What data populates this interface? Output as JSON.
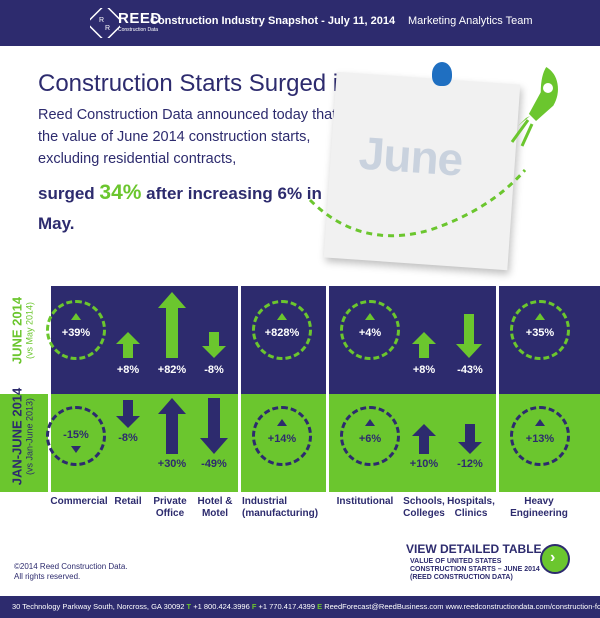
{
  "header": {
    "logo_word": "REED",
    "logo_sub": "Construction Data",
    "title": "Construction Industry Snapshot - July 11, 2014",
    "team": "Marketing Analytics Team"
  },
  "hero": {
    "headline": "Construction Starts Surged in June",
    "lede": "Reed Construction Data announced today that the value of June 2014 construction starts, excluding residential contracts,",
    "surge_pre": "surged ",
    "surge_big": "34%",
    "surge_post": " after increasing 6% in May.",
    "note_word": "June"
  },
  "rows": {
    "june_label": "JUNE 2014",
    "june_sub": "(vs May 2014)",
    "ytd_label": "JAN-JUNE 2014",
    "ytd_sub": "(vs Jan-June 2013)"
  },
  "june": {
    "commercial": "+39%",
    "retail": "+8%",
    "private_office": "+82%",
    "hotel": "-8%",
    "industrial": "+828%",
    "institutional": "+4%",
    "schools": "+8%",
    "hospitals": "-43%",
    "heavy": "+35%"
  },
  "ytd": {
    "commercial": "-15%",
    "retail": "-8%",
    "private_office": "+30%",
    "hotel": "-49%",
    "industrial": "+14%",
    "institutional": "+6%",
    "schools": "+10%",
    "hospitals": "-12%",
    "heavy": "+13%"
  },
  "categories": {
    "commercial": "Commercial",
    "retail": "Retail",
    "private_office_1": "Private",
    "private_office_2": "Office",
    "hotel_1": "Hotel &",
    "hotel_2": "Motel",
    "industrial_1": "Industrial",
    "industrial_2": "(manufacturing)",
    "institutional": "Institutional",
    "schools_1": "Schools,",
    "schools_2": "Colleges",
    "hospitals_1": "Hospitals,",
    "hospitals_2": "Clinics",
    "heavy_1": "Heavy",
    "heavy_2": "Engineering"
  },
  "bottom": {
    "copyright_1": "©2014 Reed Construction Data.",
    "copyright_2": "All rights reserved.",
    "view_title": "VIEW DETAILED TABLE",
    "view_sub_1": "VALUE OF UNITED STATES",
    "view_sub_2": "CONSTRUCTION STARTS – JUNE 2014",
    "view_sub_3": "(REED CONSTRUCTION DATA)"
  },
  "footer": {
    "address": "30 Technology Parkway South, Norcross, GA 30092 ",
    "t_label": "T",
    "phone": " +1 800.424.3996 ",
    "f_label": "F",
    "fax": " +1 770.417.4399 ",
    "e_label": "E",
    "email": " ReedForecast@ReedBusiness.com  www.reedconstructiondata.com/construction-forecast"
  },
  "colors": {
    "navy": "#2d2b6e",
    "green": "#6bc62e",
    "pin_blue": "#1f6fc1"
  }
}
